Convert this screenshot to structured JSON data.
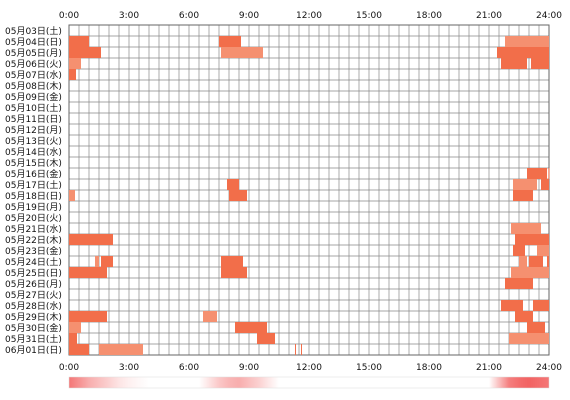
{
  "chart_data": {
    "type": "heatmap",
    "x_ticks": [
      "0:00",
      "3:00",
      "6:00",
      "9:00",
      "12:00",
      "15:00",
      "18:00",
      "21:00",
      "24:00"
    ],
    "x_range_hours": [
      0,
      24
    ],
    "rows": [
      {
        "label": "05月03日(土)",
        "segments": []
      },
      {
        "label": "05月04日(日)",
        "segments": [
          [
            0.0,
            1.0
          ],
          [
            7.5,
            8.6
          ],
          [
            21.8,
            24.0
          ]
        ]
      },
      {
        "label": "05月05日(月)",
        "segments": [
          [
            0.0,
            1.6
          ],
          [
            7.6,
            9.7
          ],
          [
            21.4,
            24.0
          ]
        ]
      },
      {
        "label": "05月06日(火)",
        "segments": [
          [
            0.0,
            0.6
          ],
          [
            21.6,
            22.9
          ],
          [
            23.1,
            24.0
          ]
        ]
      },
      {
        "label": "05月07日(水)",
        "segments": [
          [
            0.0,
            0.35
          ]
        ]
      },
      {
        "label": "05月08日(木)",
        "segments": []
      },
      {
        "label": "05月09日(金)",
        "segments": []
      },
      {
        "label": "05月10日(土)",
        "segments": []
      },
      {
        "label": "05月11日(日)",
        "segments": []
      },
      {
        "label": "05月12日(月)",
        "segments": []
      },
      {
        "label": "05月13日(火)",
        "segments": []
      },
      {
        "label": "05月14日(水)",
        "segments": []
      },
      {
        "label": "05月15日(木)",
        "segments": []
      },
      {
        "label": "05月16日(金)",
        "segments": [
          [
            22.9,
            23.9
          ],
          [
            23.97,
            24.0
          ]
        ]
      },
      {
        "label": "05月17日(土)",
        "segments": [
          [
            7.9,
            8.5
          ],
          [
            22.2,
            23.4
          ],
          [
            23.6,
            24.0
          ]
        ]
      },
      {
        "label": "05月18日(日)",
        "segments": [
          [
            0.0,
            0.3
          ],
          [
            8.0,
            8.9
          ],
          [
            22.2,
            23.2
          ]
        ]
      },
      {
        "label": "05月19日(月)",
        "segments": []
      },
      {
        "label": "05月20日(火)",
        "segments": []
      },
      {
        "label": "05月21日(水)",
        "segments": [
          [
            22.1,
            23.6
          ]
        ]
      },
      {
        "label": "05月22日(木)",
        "segments": [
          [
            0.0,
            2.2
          ],
          [
            22.3,
            24.0
          ]
        ]
      },
      {
        "label": "05月23日(金)",
        "segments": [
          [
            22.2,
            22.8
          ],
          [
            23.4,
            24.0
          ]
        ]
      },
      {
        "label": "05月24日(土)",
        "segments": [
          [
            1.3,
            1.5
          ],
          [
            1.6,
            2.2
          ],
          [
            7.6,
            8.7
          ],
          [
            22.5,
            22.9
          ],
          [
            23.0,
            23.7
          ],
          [
            23.9,
            24.0
          ]
        ]
      },
      {
        "label": "05月25日(日)",
        "segments": [
          [
            0.0,
            1.9
          ],
          [
            7.6,
            8.9
          ],
          [
            22.1,
            24.0
          ]
        ]
      },
      {
        "label": "05月26日(月)",
        "segments": [
          [
            21.8,
            23.2
          ]
        ]
      },
      {
        "label": "05月27日(火)",
        "segments": []
      },
      {
        "label": "05月28日(水)",
        "segments": [
          [
            21.6,
            22.7
          ],
          [
            23.2,
            24.0
          ]
        ]
      },
      {
        "label": "05月29日(木)",
        "segments": [
          [
            0.0,
            1.9
          ],
          [
            6.7,
            7.4
          ],
          [
            22.3,
            23.2
          ]
        ]
      },
      {
        "label": "05月30日(金)",
        "segments": [
          [
            0.0,
            0.6
          ],
          [
            8.3,
            9.9
          ],
          [
            22.9,
            23.8
          ]
        ]
      },
      {
        "label": "05月31日(土)",
        "segments": [
          [
            0.0,
            0.4
          ],
          [
            9.4,
            10.3
          ],
          [
            22.0,
            24.0
          ]
        ]
      },
      {
        "label": "06月01日(日)",
        "segments": [
          [
            0.0,
            1.0
          ],
          [
            1.5,
            3.7
          ],
          [
            11.3,
            11.35
          ],
          [
            11.6,
            11.65
          ]
        ]
      }
    ],
    "density": [
      [
        0.0,
        0.75
      ],
      [
        0.5,
        0.6
      ],
      [
        1.0,
        0.45
      ],
      [
        1.5,
        0.35
      ],
      [
        2.0,
        0.25
      ],
      [
        2.5,
        0.15
      ],
      [
        3.0,
        0.08
      ],
      [
        3.5,
        0.04
      ],
      [
        4.0,
        0.0
      ],
      [
        6.5,
        0.0
      ],
      [
        7.0,
        0.15
      ],
      [
        7.5,
        0.3
      ],
      [
        8.0,
        0.4
      ],
      [
        8.5,
        0.45
      ],
      [
        9.0,
        0.35
      ],
      [
        9.5,
        0.25
      ],
      [
        10.0,
        0.12
      ],
      [
        10.5,
        0.0
      ],
      [
        21.0,
        0.0
      ],
      [
        21.5,
        0.35
      ],
      [
        22.0,
        0.7
      ],
      [
        22.5,
        0.8
      ],
      [
        23.0,
        0.85
      ],
      [
        23.5,
        0.8
      ],
      [
        24.0,
        0.75
      ]
    ],
    "colors": {
      "cell_fill": "#f26e4a",
      "cell_fill_light": "#f59070",
      "grid": "#888888",
      "density_base": "#ffffff",
      "density_hot": "#f04848"
    }
  }
}
